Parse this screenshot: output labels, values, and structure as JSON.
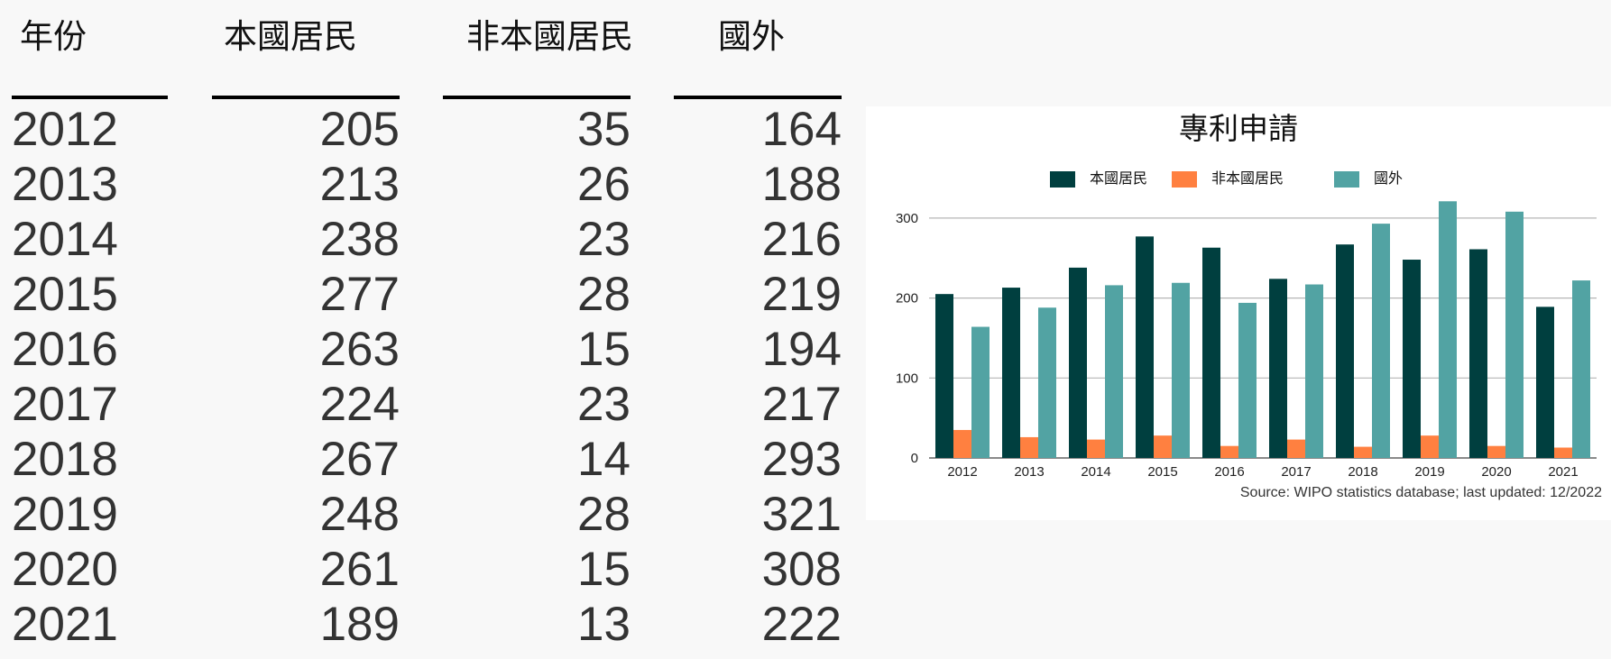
{
  "table": {
    "headers": [
      "年份",
      "本國居民",
      "非本國居民",
      "國外"
    ],
    "rows": [
      [
        "2012",
        "205",
        "35",
        "164"
      ],
      [
        "2013",
        "213",
        "26",
        "188"
      ],
      [
        "2014",
        "238",
        "23",
        "216"
      ],
      [
        "2015",
        "277",
        "28",
        "219"
      ],
      [
        "2016",
        "263",
        "15",
        "194"
      ],
      [
        "2017",
        "224",
        "23",
        "217"
      ],
      [
        "2018",
        "267",
        "14",
        "293"
      ],
      [
        "2019",
        "248",
        "28",
        "321"
      ],
      [
        "2020",
        "261",
        "15",
        "308"
      ],
      [
        "2021",
        "189",
        "13",
        "222"
      ]
    ]
  },
  "chart_data": {
    "type": "bar",
    "title": "專利申請",
    "categories": [
      "2012",
      "2013",
      "2014",
      "2015",
      "2016",
      "2017",
      "2018",
      "2019",
      "2020",
      "2021"
    ],
    "series": [
      {
        "name": "本國居民",
        "color": "#003f3f",
        "values": [
          205,
          213,
          238,
          277,
          263,
          224,
          267,
          248,
          261,
          189
        ]
      },
      {
        "name": "非本國居民",
        "color": "#ff8040",
        "values": [
          35,
          26,
          23,
          28,
          15,
          23,
          14,
          28,
          15,
          13
        ]
      },
      {
        "name": "國外",
        "color": "#52a3a3",
        "values": [
          164,
          188,
          216,
          219,
          194,
          217,
          293,
          321,
          308,
          222
        ]
      }
    ],
    "yticks": [
      0,
      100,
      200,
      300
    ],
    "ylim": [
      0,
      330
    ],
    "grid": true,
    "legend": "top-center",
    "source": "Source: WIPO statistics database; last updated: 12/2022"
  }
}
